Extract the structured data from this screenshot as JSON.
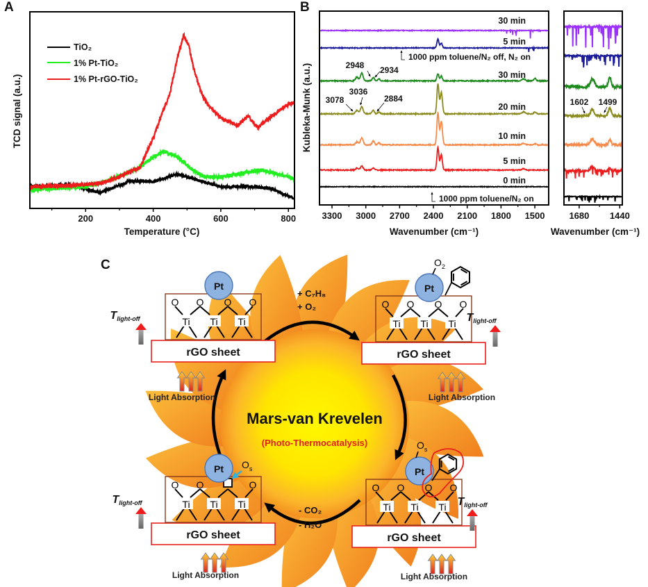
{
  "panels": {
    "a": "A",
    "b": "B",
    "c": "C"
  },
  "chart_data": [
    {
      "panel": "A",
      "type": "line",
      "title": "",
      "xlabel": "Temperature (°C)",
      "ylabel": "TCD signal (a.u.)",
      "xlim": [
        35,
        818
      ],
      "ylim": [
        0,
        100
      ],
      "xticks": [
        200,
        400,
        600,
        800
      ],
      "xminor": [
        100,
        300,
        500,
        700
      ],
      "yticks": [],
      "grid": false,
      "legend": "top-left",
      "series": [
        {
          "name": "TiO₂",
          "color": "#000000",
          "noise": 1.6,
          "points": [
            [
              35,
              11
            ],
            [
              150,
              12
            ],
            [
              200,
              10
            ],
            [
              240,
              8
            ],
            [
              290,
              11
            ],
            [
              330,
              14
            ],
            [
              400,
              13.5
            ],
            [
              470,
              17.5
            ],
            [
              550,
              13.5
            ],
            [
              600,
              11
            ],
            [
              700,
              11
            ],
            [
              750,
              10
            ],
            [
              790,
              7
            ],
            [
              818,
              5
            ]
          ]
        },
        {
          "name": "1% Pt-TiO₂",
          "color": "#22ee22",
          "noise": 2.0,
          "points": [
            [
              35,
              9.5
            ],
            [
              200,
              11
            ],
            [
              280,
              15
            ],
            [
              350,
              20
            ],
            [
              400,
              26
            ],
            [
              430,
              29
            ],
            [
              470,
              26.5
            ],
            [
              510,
              20.5
            ],
            [
              550,
              16
            ],
            [
              600,
              16
            ],
            [
              720,
              19.5
            ],
            [
              780,
              17
            ],
            [
              818,
              15
            ]
          ]
        },
        {
          "name": "1% Pt-rGO-TiO₂",
          "color": "#ee1c1c",
          "noise": 2.0,
          "points": [
            [
              35,
              11
            ],
            [
              150,
              11.5
            ],
            [
              250,
              13
            ],
            [
              300,
              16
            ],
            [
              330,
              18.5
            ],
            [
              360,
              20.5
            ],
            [
              400,
              36
            ],
            [
              450,
              59
            ],
            [
              475,
              79
            ],
            [
              490,
              88
            ],
            [
              505,
              83
            ],
            [
              520,
              71
            ],
            [
              540,
              60
            ],
            [
              560,
              53
            ],
            [
              600,
              46
            ],
            [
              650,
              42
            ],
            [
              680,
              47
            ],
            [
              710,
              41
            ],
            [
              750,
              47
            ],
            [
              790,
              52
            ],
            [
              818,
              54
            ]
          ]
        }
      ]
    },
    {
      "panel": "B",
      "type": "line",
      "title": "",
      "xlabel": "Wavenumber (cm⁻¹)",
      "ylabel": "Kubleka-Munk (a.u.)",
      "xlim": [
        3411,
        1377
      ],
      "ylim": [
        0,
        100
      ],
      "xticks": [
        3300,
        3000,
        2700,
        2400,
        2100,
        1800,
        1500
      ],
      "xminor": [
        3150,
        2850,
        2550,
        2250,
        1950,
        1650
      ],
      "grid": false,
      "series": [
        {
          "name": "0 min",
          "color": "#000000",
          "offset": 9.4,
          "noise": 0.3,
          "peaks": []
        },
        {
          "name": "5 min",
          "color": "#ee1c1c",
          "offset": 18,
          "noise": 0.5,
          "peaks": [
            [
              2360,
              11.5,
              9
            ],
            [
              2330,
              8,
              9
            ],
            [
              3036,
              2,
              12
            ],
            [
              3078,
              1,
              12
            ],
            [
              2934,
              1,
              10
            ],
            [
              1600,
              0.6,
              15
            ]
          ]
        },
        {
          "name": "10 min",
          "color": "#f58a4a",
          "offset": 31,
          "noise": 0.5,
          "peaks": [
            [
              2360,
              16.5,
              9
            ],
            [
              2330,
              12,
              10
            ],
            [
              3036,
              3.6,
              12
            ],
            [
              3078,
              1.5,
              12
            ],
            [
              2934,
              2,
              10
            ],
            [
              2884,
              1,
              10
            ],
            [
              1600,
              0.8,
              15
            ],
            [
              1499,
              0.6,
              10
            ]
          ]
        },
        {
          "name": "20 min",
          "color": "#8a8a1e",
          "offset": 47,
          "noise": 0.5,
          "peaks": [
            [
              2360,
              15.5,
              9
            ],
            [
              2330,
              11,
              10
            ],
            [
              3036,
              3.6,
              12
            ],
            [
              3078,
              1.8,
              12
            ],
            [
              2934,
              1.8,
              10
            ],
            [
              2884,
              1,
              10
            ],
            [
              1600,
              1,
              15
            ],
            [
              1499,
              1,
              10
            ]
          ]
        },
        {
          "name": "30 min",
          "color": "#1e8a1e",
          "offset": 64,
          "noise": 0.5,
          "peaks": [
            [
              2360,
              3.6,
              9
            ],
            [
              2330,
              2.5,
              9
            ],
            [
              3036,
              4,
              12
            ],
            [
              3078,
              2,
              12
            ],
            [
              2934,
              1.8,
              10
            ],
            [
              2884,
              1,
              10
            ],
            [
              1600,
              1,
              15
            ],
            [
              1499,
              1.2,
              10
            ]
          ]
        },
        {
          "name": "5 min",
          "color": "#1a1a9a",
          "offset": 81,
          "noise": 0.4,
          "peaks": [
            [
              2360,
              4.5,
              9
            ],
            [
              2330,
              2.5,
              9
            ]
          ],
          "spikes": {
            "range": [
              1450,
              1560
            ],
            "depth": 2
          }
        },
        {
          "name": "30 min",
          "color": "#9b30ff",
          "offset": 90,
          "noise": 0.4,
          "peaks": [],
          "spikes": {
            "range": [
              1450,
              1760
            ],
            "depth": 4
          }
        }
      ],
      "annotations": {
        "gas_off": "1000 ppm toluene/N₂ off, N₂ on",
        "gas_on": "1000 ppm toluene/N₂ on",
        "peak_2948": "2948",
        "peak_2934": "2934",
        "peak_3078": "3078",
        "peak_3036": "3036",
        "peak_2884": "2884"
      },
      "inset": {
        "xlim": [
          1770,
          1425
        ],
        "xticks": [
          1680,
          1440
        ],
        "xminor": [
          1560
        ],
        "xlabel": "Wavenumber (cm⁻¹)",
        "series": [
          {
            "color": "#000000",
            "offset": 4.3,
            "noise": 0.4,
            "peaks": [],
            "spikes": {
              "range": [
                1440,
                1760
              ],
              "depth": 3
            }
          },
          {
            "color": "#ee1c1c",
            "offset": 17.6,
            "noise": 1.2,
            "peaks": [
              [
                1602,
                2,
                12
              ],
              [
                1499,
                1.5,
                8
              ]
            ],
            "spikes": {
              "range": [
                1440,
                1760
              ],
              "depth": 5
            }
          },
          {
            "color": "#f58a4a",
            "offset": 31,
            "noise": 1.2,
            "peaks": [
              [
                1602,
                3,
                12
              ],
              [
                1499,
                2.5,
                8
              ]
            ]
          },
          {
            "color": "#8a8a1e",
            "offset": 46,
            "noise": 1.0,
            "peaks": [
              [
                1602,
                3.5,
                10
              ],
              [
                1499,
                4,
                8
              ]
            ]
          },
          {
            "color": "#1e8a1e",
            "offset": 61,
            "noise": 1.4,
            "peaks": [
              [
                1602,
                4,
                12
              ],
              [
                1499,
                5,
                8
              ]
            ]
          },
          {
            "color": "#1a1a9a",
            "offset": 77,
            "noise": 0.6,
            "peaks": [],
            "spikes": {
              "range": [
                1440,
                1760
              ],
              "depth": 6
            }
          },
          {
            "color": "#9b30ff",
            "offset": 92,
            "noise": 0.8,
            "peaks": [],
            "spikes": {
              "range": [
                1440,
                1770
              ],
              "depth": 12
            }
          }
        ],
        "annotations": {
          "peak_1602": "1602",
          "peak_1499": "1499"
        }
      }
    }
  ],
  "diagram": {
    "center_title": "Mars-van Krevelen",
    "center_subtitle": "(Photo-Thermocatalysis)",
    "atoms": {
      "O": "O",
      "Ti": "Ti",
      "Pt": "Pt"
    },
    "sheet_label": "rGO sheet",
    "light_label": "Light Absorption",
    "t_light_off": {
      "T": "T",
      "sub": "light-off"
    },
    "adsorbate_O2": {
      "base": "O",
      "sub": "2"
    },
    "adsorbate_Os": {
      "base": "O",
      "sub": "s"
    },
    "step_top": {
      "line1": "+ C₇H₈",
      "line2": "+  O₂"
    },
    "step_bottom": {
      "line1": "- CO₂",
      "line2": "- H₂O"
    },
    "colors": {
      "sun_core": "#fff200",
      "sun_edge": "#f39020",
      "petal": "#f7a02a",
      "sheet_border": "#e8211b",
      "box_border": "#8b3a1a",
      "pt_fill": "#8fb3e0",
      "vacancy_arrow": "#2bb3e6"
    }
  }
}
